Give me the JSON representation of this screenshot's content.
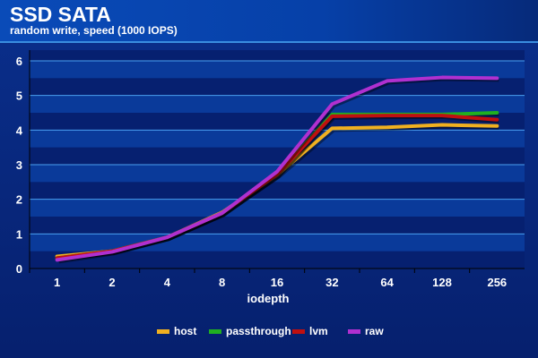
{
  "chart_data": {
    "type": "line",
    "title": "SSD SATA",
    "subtitle": "random write, speed (1000 IOPS)",
    "xlabel": "iodepth",
    "ylabel": "",
    "categories": [
      "1",
      "2",
      "4",
      "8",
      "16",
      "32",
      "64",
      "128",
      "256"
    ],
    "ylim": [
      0,
      6
    ],
    "yticks": [
      "0",
      "1",
      "2",
      "3",
      "4",
      "5",
      "6"
    ],
    "grid": true,
    "legend_position": "bottom",
    "series": [
      {
        "name": "host",
        "color": "#f0b020",
        "values": [
          0.35,
          0.5,
          0.9,
          1.62,
          2.7,
          4.05,
          4.08,
          4.15,
          4.12
        ]
      },
      {
        "name": "passthrough",
        "color": "#20b020",
        "values": [
          0.3,
          0.5,
          0.9,
          1.6,
          2.72,
          4.45,
          4.45,
          4.45,
          4.5
        ]
      },
      {
        "name": "lvm",
        "color": "#c01010",
        "values": [
          0.3,
          0.5,
          0.9,
          1.6,
          2.72,
          4.4,
          4.42,
          4.42,
          4.3
        ]
      },
      {
        "name": "raw",
        "color": "#b030d0",
        "values": [
          0.25,
          0.48,
          0.9,
          1.6,
          2.8,
          4.75,
          5.42,
          5.52,
          5.5
        ]
      }
    ]
  }
}
